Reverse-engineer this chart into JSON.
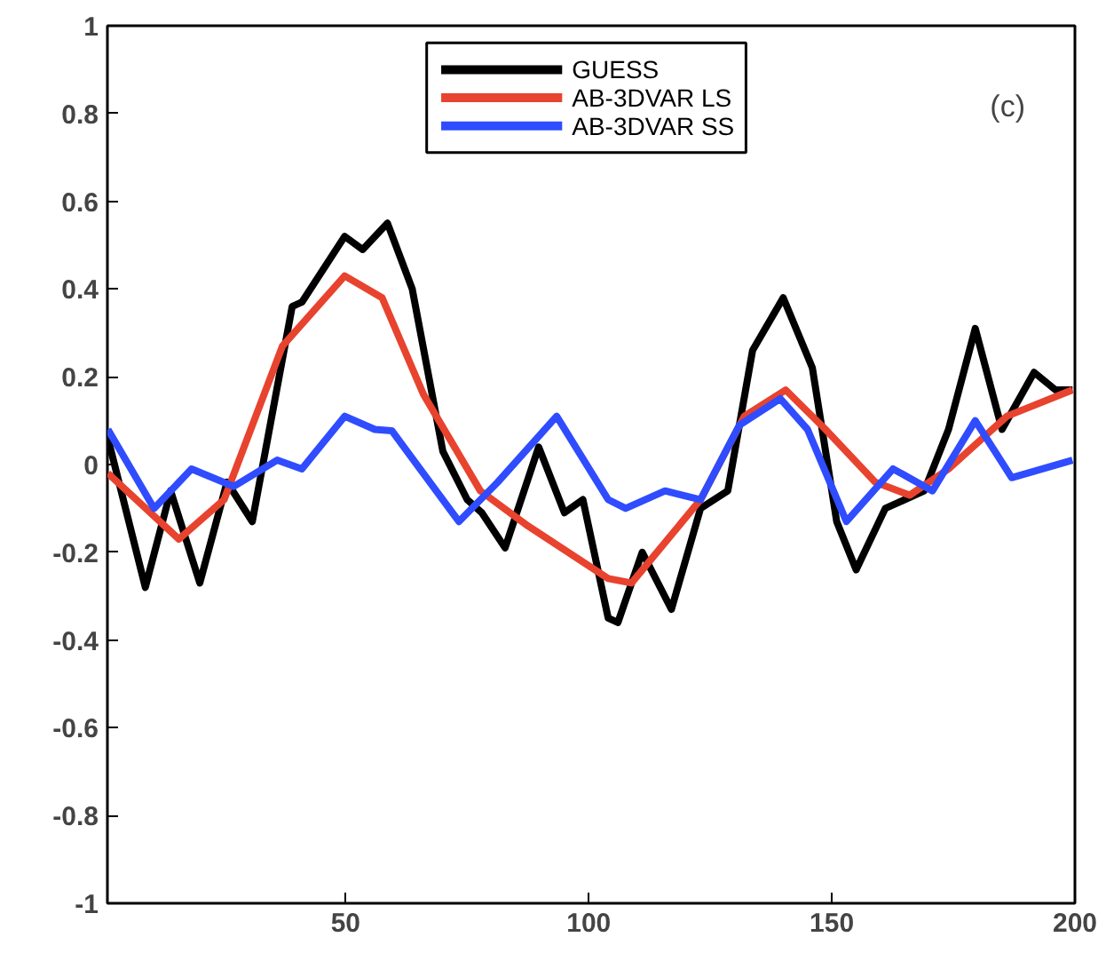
{
  "chart_data": {
    "type": "line",
    "xlim": [
      1,
      200
    ],
    "ylim": [
      -1,
      1
    ],
    "xticks": [
      50,
      100,
      150,
      200
    ],
    "yticks": [
      -1,
      -0.8,
      -0.6,
      -0.4,
      -0.2,
      0,
      0.2,
      0.4,
      0.6,
      0.8,
      1
    ],
    "grid": false,
    "legend": "top",
    "line_style": "solid",
    "annotations": [
      "(c)"
    ],
    "series": [
      {
        "name": "GUESS",
        "color": "#000000",
        "x": [
          1.1,
          8.8,
          14,
          20,
          25.6,
          30.8,
          39,
          41,
          49.8,
          53.5,
          58.6,
          63.7,
          70,
          75,
          78,
          82.8,
          89.7,
          95,
          98.8,
          104,
          106,
          111,
          117,
          123,
          128.6,
          133.7,
          140,
          146,
          151,
          155,
          161,
          169,
          174,
          179.5,
          185,
          191.6,
          196,
          199.5
        ],
        "values": [
          0.06,
          -0.28,
          -0.06,
          -0.27,
          -0.04,
          -0.13,
          0.36,
          0.37,
          0.52,
          0.49,
          0.55,
          0.4,
          0.03,
          -0.08,
          -0.11,
          -0.19,
          0.04,
          -0.11,
          -0.08,
          -0.35,
          -0.36,
          -0.2,
          -0.33,
          -0.1,
          -0.06,
          0.26,
          0.38,
          0.22,
          -0.13,
          -0.24,
          -0.1,
          -0.06,
          0.08,
          0.31,
          0.08,
          0.21,
          0.17,
          0.17
        ]
      },
      {
        "name": "AB-3DVAR LS",
        "color": "#e8432e",
        "x": [
          1.1,
          15.7,
          25,
          37,
          49.8,
          57.5,
          66,
          77.7,
          87.5,
          104,
          108.8,
          123,
          132,
          140.5,
          148.7,
          158.9,
          166,
          174,
          186,
          199.5
        ],
        "values": [
          -0.02,
          -0.17,
          -0.08,
          0.27,
          0.43,
          0.38,
          0.16,
          -0.06,
          -0.14,
          -0.26,
          -0.27,
          -0.08,
          0.11,
          0.17,
          0.08,
          -0.04,
          -0.07,
          -0.01,
          0.11,
          0.17
        ]
      },
      {
        "name": "AB-3DVAR SS",
        "color": "#2f4cff",
        "x": [
          1.1,
          10.6,
          18.3,
          27,
          35.9,
          41,
          49.8,
          56,
          59.5,
          73.3,
          81.3,
          93.4,
          104,
          107.6,
          115.7,
          123,
          131,
          139.4,
          145,
          153,
          162.6,
          170.7,
          179.5,
          187,
          199.5
        ],
        "values": [
          0.08,
          -0.1,
          -0.01,
          -0.05,
          0.01,
          -0.01,
          0.11,
          0.08,
          0.077,
          -0.13,
          -0.04,
          0.11,
          -0.08,
          -0.1,
          -0.06,
          -0.08,
          0.09,
          0.15,
          0.08,
          -0.13,
          -0.01,
          -0.06,
          0.1,
          -0.03,
          0.01
        ]
      }
    ]
  }
}
